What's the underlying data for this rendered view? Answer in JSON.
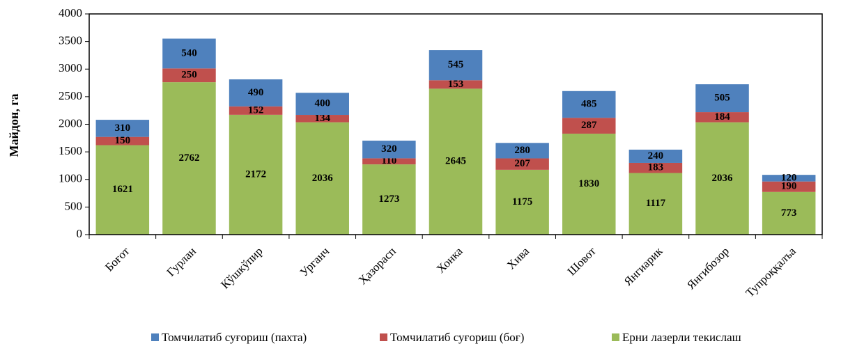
{
  "chart_data": {
    "type": "stacked_bar",
    "y_label": "Майдон, га",
    "categories": [
      "Боғот",
      "Гурлан",
      "Кўшкўпир",
      "Урганч",
      "Ҳазорасп",
      "Хонка",
      "Хива",
      "Шовот",
      "Янгиарик",
      "Янгибозор",
      "Тупроққалъа"
    ],
    "series": [
      {
        "name": "Томчилатиб суғориш (пахта)",
        "color": "#4f81bd",
        "values": [
          310,
          540,
          490,
          400,
          320,
          545,
          280,
          485,
          240,
          505,
          120
        ]
      },
      {
        "name": "Томчилатиб суғориш (боғ)",
        "color": "#c0504d",
        "values": [
          150,
          250,
          152,
          134,
          110,
          153,
          207,
          287,
          183,
          184,
          190
        ]
      },
      {
        "name": "Ерни лазерли текислаш",
        "color": "#9bbb59",
        "values": [
          1621,
          2762,
          2172,
          2036,
          1273,
          2645,
          1175,
          1830,
          1117,
          2036,
          773
        ]
      }
    ],
    "ylim": [
      0,
      4000
    ],
    "yticks": [
      0,
      500,
      1000,
      1500,
      2000,
      2500,
      3000,
      3500,
      4000
    ],
    "legend": "bottom"
  }
}
